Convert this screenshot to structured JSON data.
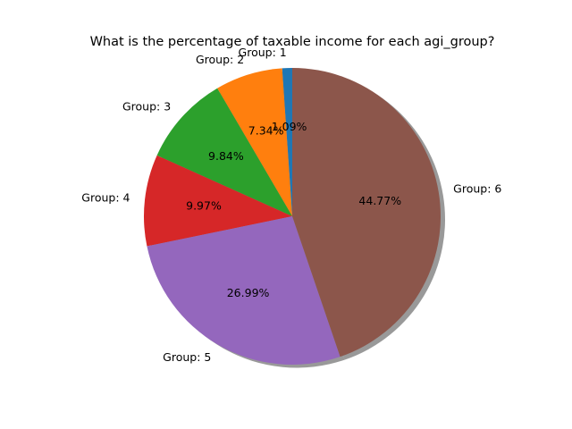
{
  "chart_data": {
    "type": "pie",
    "title": "What is the percentage of taxable income for each agi_group?",
    "labels": [
      "Group: 1",
      "Group: 2",
      "Group: 3",
      "Group: 4",
      "Group: 5",
      "Group: 6"
    ],
    "values": [
      1.09,
      7.34,
      9.84,
      9.97,
      26.99,
      44.77
    ],
    "value_labels": [
      "1.09%",
      "7.34%",
      "9.84%",
      "9.97%",
      "26.99%",
      "44.77%"
    ],
    "colors": [
      "#1f77b4",
      "#ff7f0e",
      "#2ca02c",
      "#d62728",
      "#9467bd",
      "#8c564b"
    ],
    "start_angle_deg": 90,
    "direction": "counterclockwise",
    "shadow": true,
    "legend": false
  }
}
